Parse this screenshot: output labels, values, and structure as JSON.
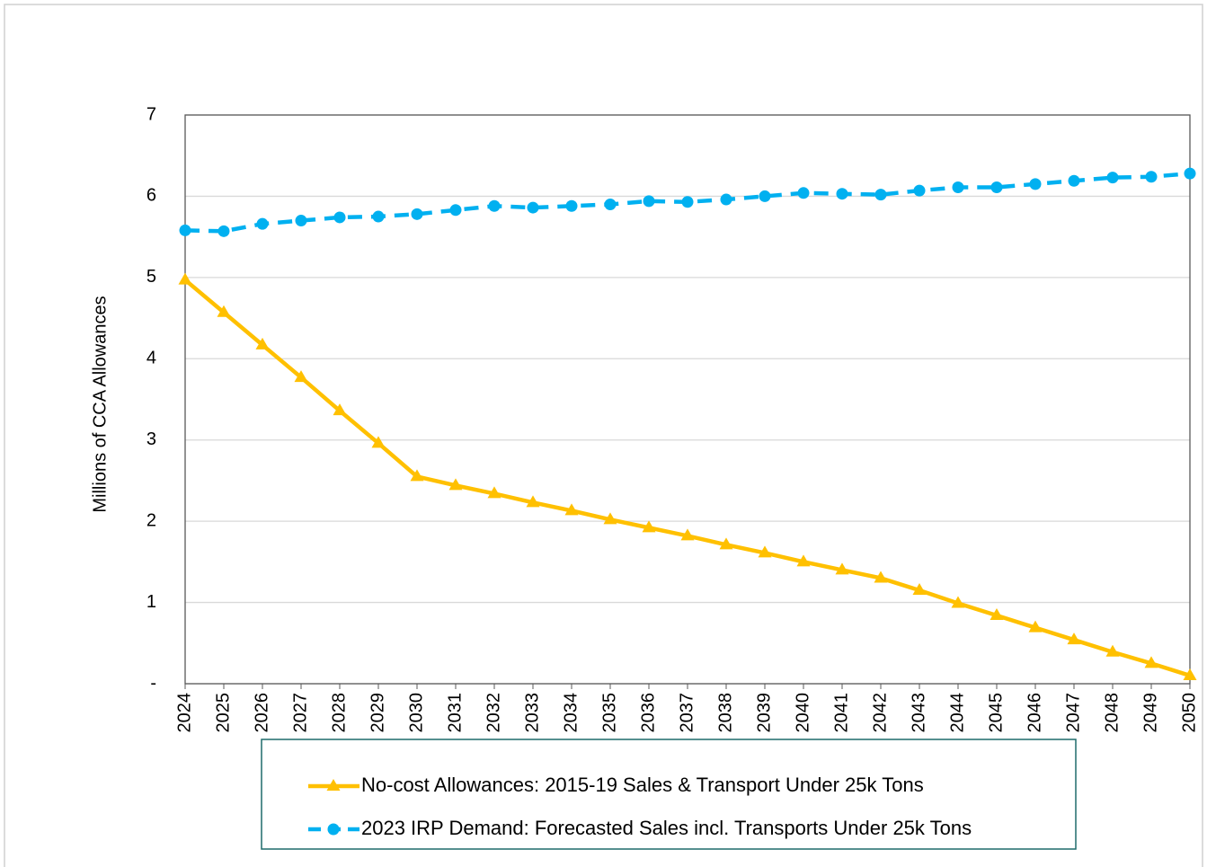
{
  "chart_data": {
    "type": "line",
    "y_label": "Millions of CCA Allowances",
    "categories": [
      "2024",
      "2025",
      "2026",
      "2027",
      "2028",
      "2029",
      "2030",
      "2031",
      "2032",
      "2033",
      "2034",
      "2035",
      "2036",
      "2037",
      "2038",
      "2039",
      "2040",
      "2041",
      "2042",
      "2043",
      "2044",
      "2045",
      "2046",
      "2047",
      "2048",
      "2049",
      "2050"
    ],
    "series": [
      {
        "name": "No-cost Allowances: 2015-19 Sales & Transport Under 25k Tons",
        "color": "#FFC000",
        "marker": "triangle",
        "dashed": false,
        "values": [
          4.97,
          4.57,
          4.17,
          3.77,
          3.36,
          2.96,
          2.55,
          2.44,
          2.34,
          2.23,
          2.13,
          2.02,
          1.92,
          1.82,
          1.71,
          1.61,
          1.5,
          1.4,
          1.3,
          1.15,
          0.99,
          0.84,
          0.69,
          0.54,
          0.39,
          0.25,
          0.1
        ]
      },
      {
        "name": "2023 IRP Demand: Forecasted Sales incl. Transports Under 25k Tons",
        "color": "#00B0F0",
        "marker": "circle",
        "dashed": true,
        "values": [
          5.58,
          5.57,
          5.66,
          5.7,
          5.74,
          5.75,
          5.78,
          5.83,
          5.88,
          5.86,
          5.88,
          5.9,
          5.94,
          5.93,
          5.96,
          6.0,
          6.04,
          6.03,
          6.02,
          6.07,
          6.11,
          6.11,
          6.15,
          6.19,
          6.23,
          6.24,
          6.28
        ]
      }
    ],
    "ylim": [
      0,
      7
    ],
    "yticks": [
      {
        "value": 0,
        "label": "-"
      },
      1,
      2,
      3,
      4,
      5,
      6,
      7
    ],
    "grid": true
  }
}
